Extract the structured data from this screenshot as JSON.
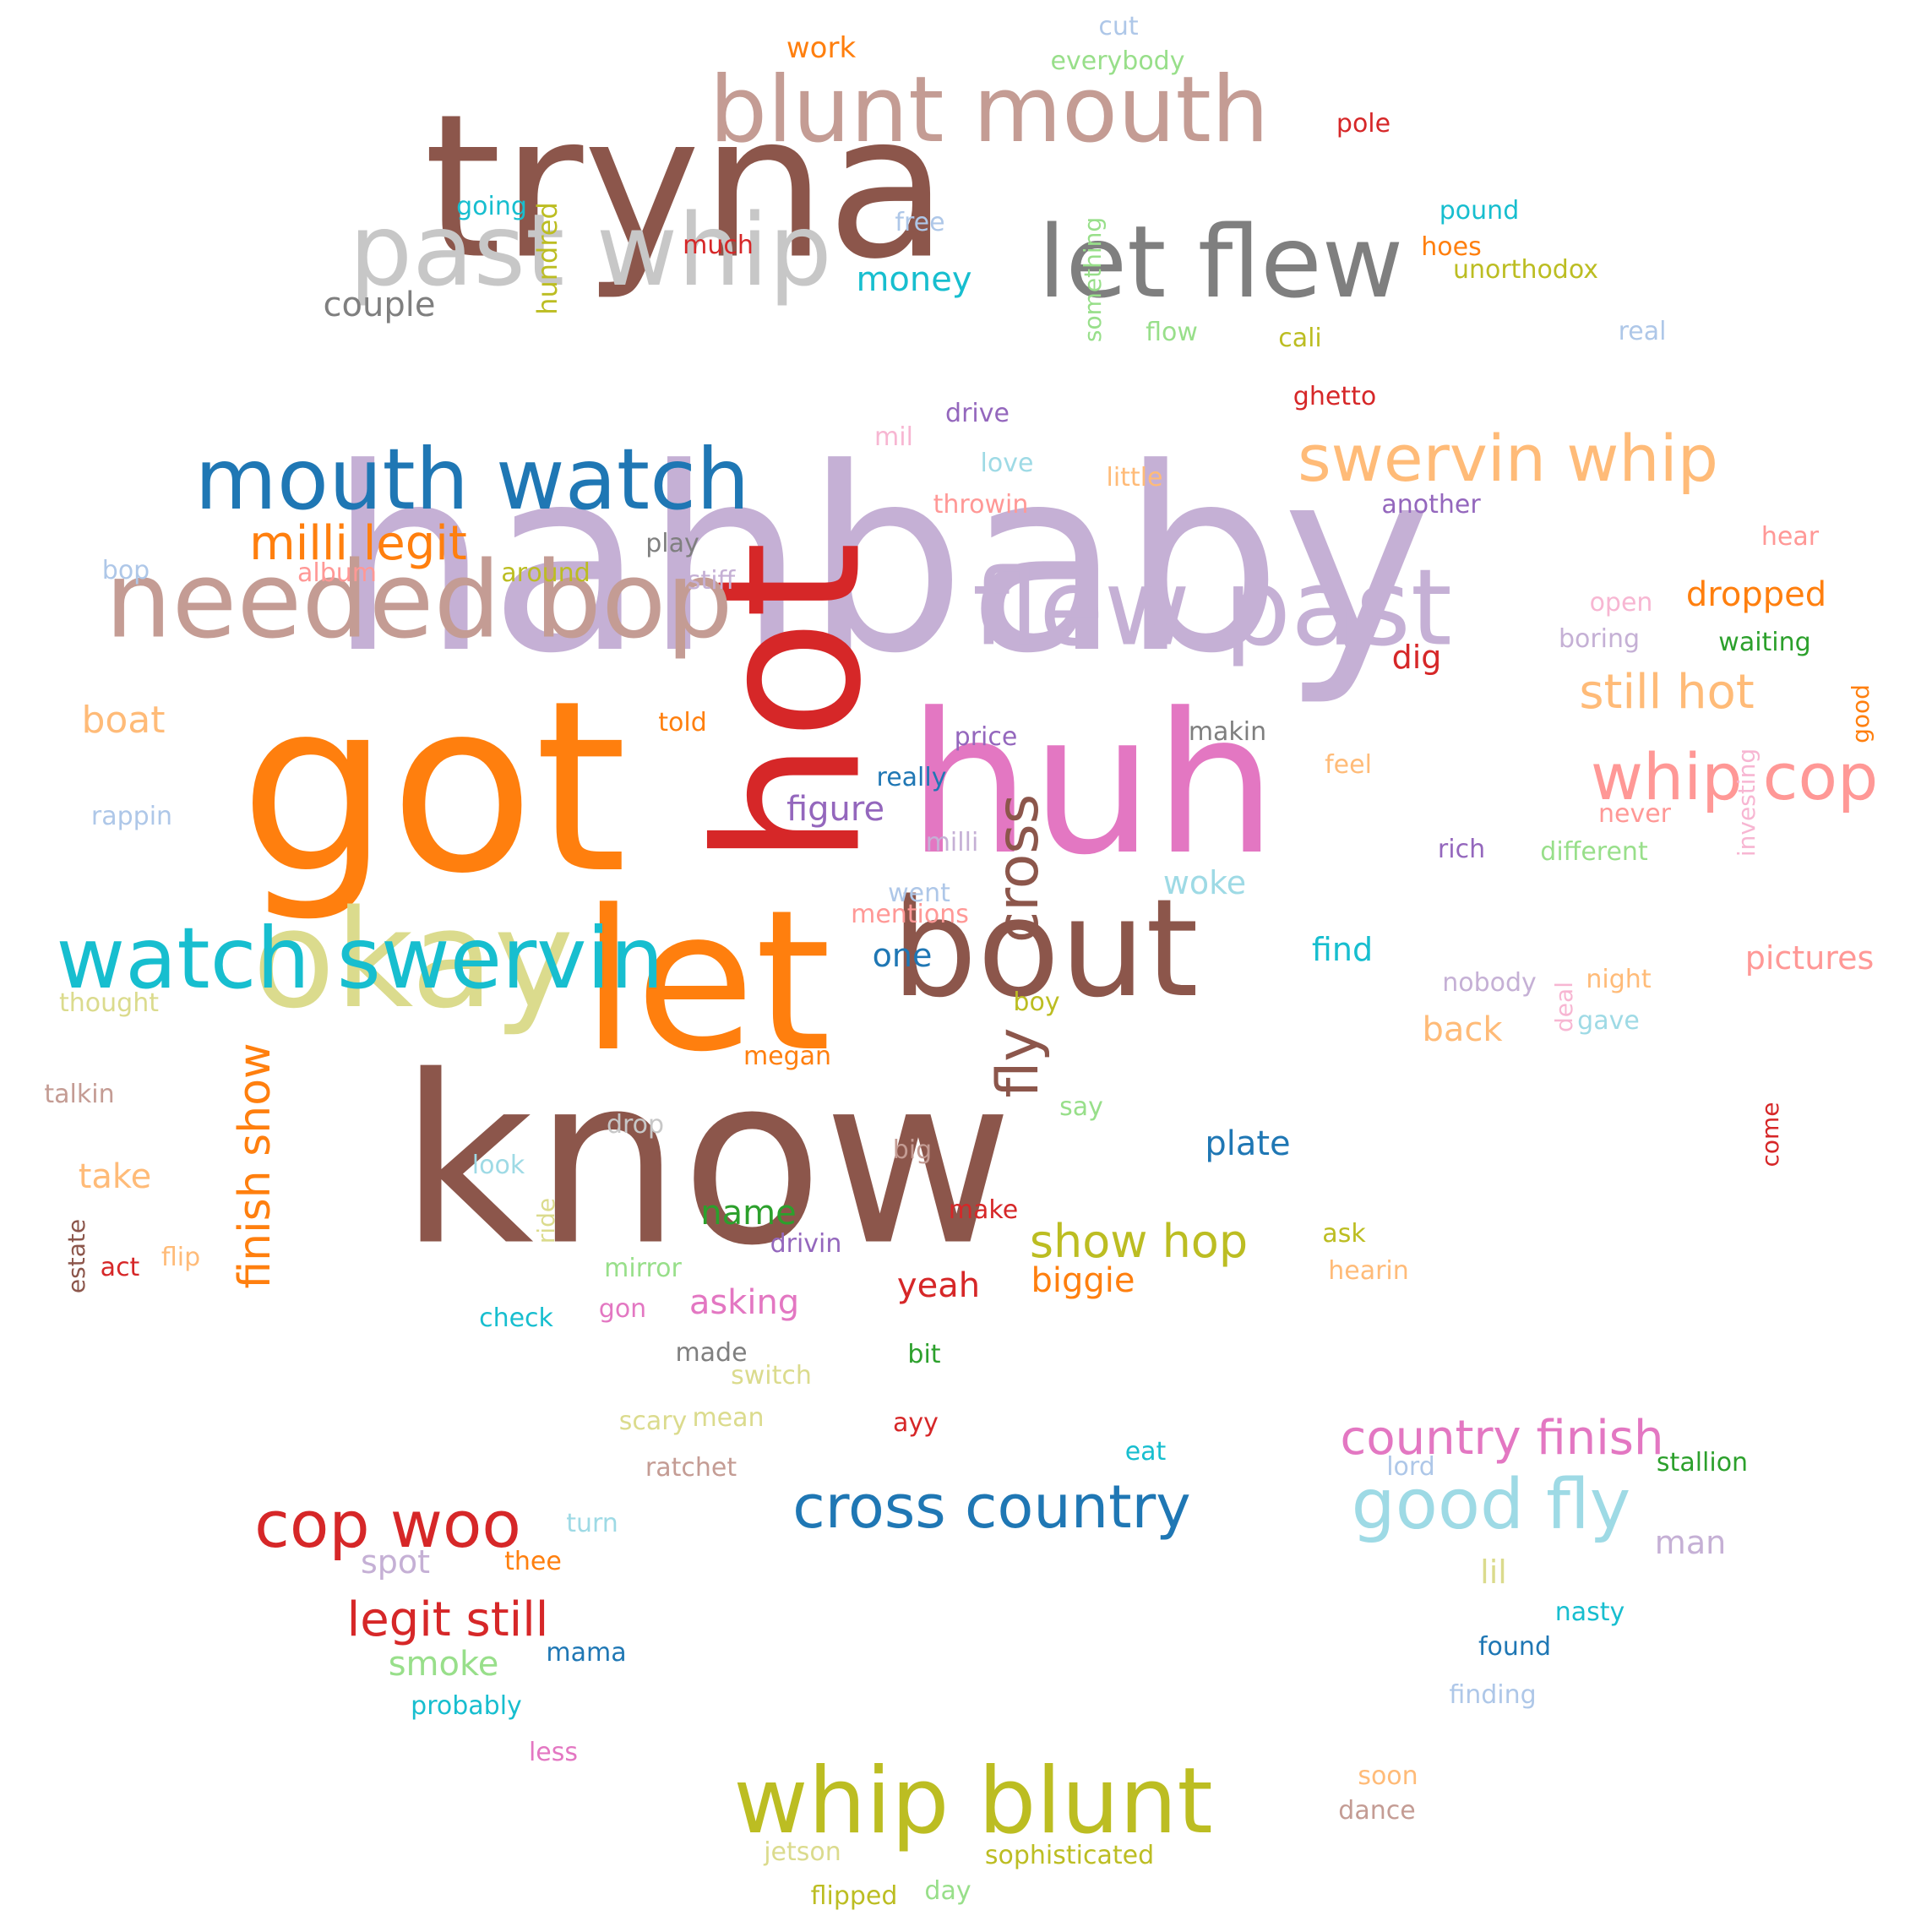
{
  "word_cloud": {
    "words": [
      {
        "text": "hahbaby",
        "color": "#c5b0d5",
        "size": 300
      },
      {
        "text": "got",
        "color": "#ff7f0e",
        "size": 280
      },
      {
        "text": "know",
        "color": "#8c564b",
        "size": 275
      },
      {
        "text": "tryna",
        "color": "#8c564b",
        "size": 235
      },
      {
        "text": "hot",
        "color": "#d62728",
        "size": 235,
        "vertical": true
      },
      {
        "text": "huh",
        "color": "#e377c2",
        "size": 230
      },
      {
        "text": "let",
        "color": "#ff7f0e",
        "size": 230
      },
      {
        "text": "bout",
        "color": "#8c564b",
        "size": 160
      },
      {
        "text": "okay",
        "color": "#dbdb8d",
        "size": 160
      },
      {
        "text": "needed bop",
        "color": "#c49c94",
        "size": 125
      },
      {
        "text": "flew past",
        "color": "#c5b0d5",
        "size": 125
      },
      {
        "text": "past whip",
        "color": "#c7c7c7",
        "size": 118
      },
      {
        "text": "let flew",
        "color": "#7f7f7f",
        "size": 118
      },
      {
        "text": "blunt mouth",
        "color": "#c49c94",
        "size": 108
      },
      {
        "text": "whip blunt",
        "color": "#bcbd22",
        "size": 108
      },
      {
        "text": "mouth watch",
        "color": "#1f77b4",
        "size": 100
      },
      {
        "text": "watch swervin",
        "color": "#17becf",
        "size": 100
      },
      {
        "text": "good fly",
        "color": "#9edae5",
        "size": 82
      },
      {
        "text": "swervin whip",
        "color": "#ffbb78",
        "size": 76
      },
      {
        "text": "whip cop",
        "color": "#ff9896",
        "size": 76
      },
      {
        "text": "cop woo",
        "color": "#d62728",
        "size": 76
      },
      {
        "text": "cross country",
        "color": "#1f77b4",
        "size": 70
      },
      {
        "text": "cross",
        "color": "#8c564b",
        "size": 68,
        "vertical": true
      },
      {
        "text": "fly",
        "color": "#8c564b",
        "size": 68,
        "vertical": true
      },
      {
        "text": "still hot",
        "color": "#ffbb78",
        "size": 56
      },
      {
        "text": "country finish",
        "color": "#e377c2",
        "size": 56
      },
      {
        "text": "milli legit",
        "color": "#ff7f0e",
        "size": 56
      },
      {
        "text": "legit still",
        "color": "#d62728",
        "size": 56
      },
      {
        "text": "show hop",
        "color": "#bcbd22",
        "size": 54
      },
      {
        "text": "finish show",
        "color": "#ff7f0e",
        "size": 52,
        "vertical": true
      },
      {
        "text": "couple",
        "color": "#7f7f7f",
        "size": 40
      },
      {
        "text": "money",
        "color": "#17becf",
        "size": 40
      },
      {
        "text": "boat",
        "color": "#ffbb78",
        "size": 44
      },
      {
        "text": "dropped",
        "color": "#ff7f0e",
        "size": 40
      },
      {
        "text": "figure",
        "color": "#9467bd",
        "size": 40
      },
      {
        "text": "plate",
        "color": "#1f77b4",
        "size": 40
      },
      {
        "text": "asking",
        "color": "#e377c2",
        "size": 40
      },
      {
        "text": "yeah",
        "color": "#d62728",
        "size": 40
      },
      {
        "text": "name",
        "color": "#2ca02c",
        "size": 40
      },
      {
        "text": "biggie",
        "color": "#ff7f0e",
        "size": 40
      },
      {
        "text": "smoke",
        "color": "#98df8a",
        "size": 40
      },
      {
        "text": "take",
        "color": "#ffbb78",
        "size": 40
      },
      {
        "text": "pictures",
        "color": "#ff9896",
        "size": 38
      },
      {
        "text": "woke",
        "color": "#9edae5",
        "size": 38
      },
      {
        "text": "find",
        "color": "#17becf",
        "size": 38
      },
      {
        "text": "back",
        "color": "#ffbb78",
        "size": 40
      },
      {
        "text": "one",
        "color": "#1f77b4",
        "size": 38
      },
      {
        "text": "spot",
        "color": "#c5b0d5",
        "size": 38
      },
      {
        "text": "man",
        "color": "#c5b0d5",
        "size": 38
      },
      {
        "text": "lil",
        "color": "#dbdb8d",
        "size": 38
      },
      {
        "text": "dig",
        "color": "#d62728",
        "size": 38
      },
      {
        "text": "hundred",
        "color": "#bcbd22",
        "size": 32,
        "vertical": true
      },
      {
        "text": "work",
        "color": "#ff7f0e",
        "size": 34
      },
      {
        "text": "cut",
        "color": "#aec7e8",
        "size": 30
      },
      {
        "text": "everybody",
        "color": "#98df8a",
        "size": 30
      },
      {
        "text": "pole",
        "color": "#d62728",
        "size": 30
      },
      {
        "text": "going",
        "color": "#17becf",
        "size": 30
      },
      {
        "text": "free",
        "color": "#aec7e8",
        "size": 30
      },
      {
        "text": "much",
        "color": "#d62728",
        "size": 30
      },
      {
        "text": "pound",
        "color": "#17becf",
        "size": 30
      },
      {
        "text": "hoes",
        "color": "#ff7f0e",
        "size": 30
      },
      {
        "text": "unorthodox",
        "color": "#bcbd22",
        "size": 30
      },
      {
        "text": "something",
        "color": "#98df8a",
        "size": 28,
        "vertical": true
      },
      {
        "text": "flow",
        "color": "#98df8a",
        "size": 30
      },
      {
        "text": "cali",
        "color": "#bcbd22",
        "size": 30
      },
      {
        "text": "real",
        "color": "#aec7e8",
        "size": 30
      },
      {
        "text": "ghetto",
        "color": "#d62728",
        "size": 30
      },
      {
        "text": "drive",
        "color": "#9467bd",
        "size": 30
      },
      {
        "text": "mil",
        "color": "#f7b6d2",
        "size": 30
      },
      {
        "text": "love",
        "color": "#9edae5",
        "size": 30
      },
      {
        "text": "little",
        "color": "#ffbb78",
        "size": 30
      },
      {
        "text": "throwin",
        "color": "#ff9896",
        "size": 30
      },
      {
        "text": "another",
        "color": "#9467bd",
        "size": 30
      },
      {
        "text": "hear",
        "color": "#ff9896",
        "size": 30
      },
      {
        "text": "play",
        "color": "#7f7f7f",
        "size": 30
      },
      {
        "text": "bop",
        "color": "#aec7e8",
        "size": 30
      },
      {
        "text": "album",
        "color": "#ff9896",
        "size": 30
      },
      {
        "text": "around",
        "color": "#bcbd22",
        "size": 30
      },
      {
        "text": "stiff",
        "color": "#c5b0d5",
        "size": 30
      },
      {
        "text": "open",
        "color": "#f7b6d2",
        "size": 30
      },
      {
        "text": "boring",
        "color": "#c5b0d5",
        "size": 30
      },
      {
        "text": "waiting",
        "color": "#2ca02c",
        "size": 30
      },
      {
        "text": "good",
        "color": "#ff7f0e",
        "size": 28,
        "vertical": true
      },
      {
        "text": "told",
        "color": "#ff7f0e",
        "size": 30
      },
      {
        "text": "makin",
        "color": "#7f7f7f",
        "size": 30
      },
      {
        "text": "price",
        "color": "#9467bd",
        "size": 30
      },
      {
        "text": "feel",
        "color": "#ffbb78",
        "size": 30
      },
      {
        "text": "investing",
        "color": "#f7b6d2",
        "size": 28,
        "vertical": true
      },
      {
        "text": "never",
        "color": "#ff9896",
        "size": 30
      },
      {
        "text": "rappin",
        "color": "#aec7e8",
        "size": 30
      },
      {
        "text": "really",
        "color": "#1f77b4",
        "size": 30
      },
      {
        "text": "milli",
        "color": "#c5b0d5",
        "size": 30
      },
      {
        "text": "rich",
        "color": "#9467bd",
        "size": 30
      },
      {
        "text": "different",
        "color": "#98df8a",
        "size": 30
      },
      {
        "text": "went",
        "color": "#aec7e8",
        "size": 30
      },
      {
        "text": "mentions",
        "color": "#ff9896",
        "size": 30
      },
      {
        "text": "thought",
        "color": "#dbdb8d",
        "size": 30
      },
      {
        "text": "nobody",
        "color": "#c5b0d5",
        "size": 30
      },
      {
        "text": "deal",
        "color": "#f7b6d2",
        "size": 28,
        "vertical": true
      },
      {
        "text": "night",
        "color": "#ffbb78",
        "size": 30
      },
      {
        "text": "gave",
        "color": "#9edae5",
        "size": 30
      },
      {
        "text": "boy",
        "color": "#bcbd22",
        "size": 30
      },
      {
        "text": "megan",
        "color": "#ff7f0e",
        "size": 30
      },
      {
        "text": "talkin",
        "color": "#c49c94",
        "size": 30
      },
      {
        "text": "say",
        "color": "#98df8a",
        "size": 30
      },
      {
        "text": "drop",
        "color": "#c7c7c7",
        "size": 30
      },
      {
        "text": "look",
        "color": "#9edae5",
        "size": 30
      },
      {
        "text": "big",
        "color": "#c49c94",
        "size": 30
      },
      {
        "text": "come",
        "color": "#d62728",
        "size": 28,
        "vertical": true
      },
      {
        "text": "make",
        "color": "#d62728",
        "size": 30
      },
      {
        "text": "ride",
        "color": "#dbdb8d",
        "size": 28,
        "vertical": true
      },
      {
        "text": "estate",
        "color": "#8c564b",
        "size": 28,
        "vertical": true
      },
      {
        "text": "act",
        "color": "#d62728",
        "size": 30
      },
      {
        "text": "flip",
        "color": "#ffbb78",
        "size": 30
      },
      {
        "text": "drivin",
        "color": "#9467bd",
        "size": 30
      },
      {
        "text": "ask",
        "color": "#bcbd22",
        "size": 30
      },
      {
        "text": "mirror",
        "color": "#98df8a",
        "size": 30
      },
      {
        "text": "hearin",
        "color": "#ffbb78",
        "size": 30
      },
      {
        "text": "gon",
        "color": "#e377c2",
        "size": 30
      },
      {
        "text": "check",
        "color": "#17becf",
        "size": 30
      },
      {
        "text": "made",
        "color": "#7f7f7f",
        "size": 30
      },
      {
        "text": "switch",
        "color": "#dbdb8d",
        "size": 30
      },
      {
        "text": "bit",
        "color": "#2ca02c",
        "size": 30
      },
      {
        "text": "scary",
        "color": "#dbdb8d",
        "size": 30
      },
      {
        "text": "mean",
        "color": "#dbdb8d",
        "size": 30
      },
      {
        "text": "ayy",
        "color": "#d62728",
        "size": 30
      },
      {
        "text": "eat",
        "color": "#17becf",
        "size": 30
      },
      {
        "text": "ratchet",
        "color": "#c49c94",
        "size": 30
      },
      {
        "text": "lord",
        "color": "#aec7e8",
        "size": 30
      },
      {
        "text": "stallion",
        "color": "#2ca02c",
        "size": 30
      },
      {
        "text": "turn",
        "color": "#9edae5",
        "size": 30
      },
      {
        "text": "thee",
        "color": "#ff7f0e",
        "size": 30
      },
      {
        "text": "nasty",
        "color": "#17becf",
        "size": 30
      },
      {
        "text": "mama",
        "color": "#1f77b4",
        "size": 30
      },
      {
        "text": "found",
        "color": "#1f77b4",
        "size": 30
      },
      {
        "text": "finding",
        "color": "#aec7e8",
        "size": 30
      },
      {
        "text": "probably",
        "color": "#17becf",
        "size": 30
      },
      {
        "text": "less",
        "color": "#e377c2",
        "size": 30
      },
      {
        "text": "soon",
        "color": "#ffbb78",
        "size": 30
      },
      {
        "text": "dance",
        "color": "#c49c94",
        "size": 30
      },
      {
        "text": "jetson",
        "color": "#dbdb8d",
        "size": 30
      },
      {
        "text": "sophisticated",
        "color": "#bcbd22",
        "size": 30
      },
      {
        "text": "flipped",
        "color": "#bcbd22",
        "size": 30
      },
      {
        "text": "day",
        "color": "#98df8a",
        "size": 30
      }
    ]
  }
}
